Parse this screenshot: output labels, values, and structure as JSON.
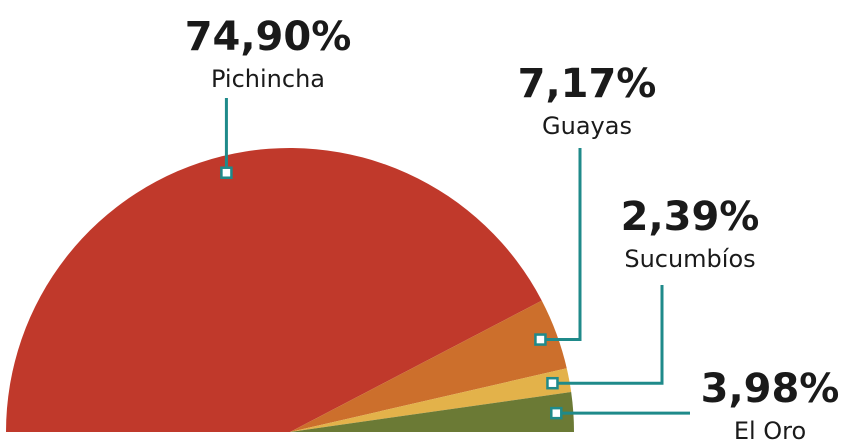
{
  "chart_data": {
    "type": "pie",
    "categories": [
      "Pichincha",
      "Guayas",
      "Sucumbíos",
      "El Oro"
    ],
    "values": [
      74.9,
      7.17,
      2.39,
      3.98
    ],
    "value_labels": [
      "74,90%",
      "7,17%",
      "2,39%",
      "3,98%"
    ],
    "colors": [
      "#c0392b",
      "#cc6f2c",
      "#e3b24a",
      "#6b7a35"
    ]
  }
}
